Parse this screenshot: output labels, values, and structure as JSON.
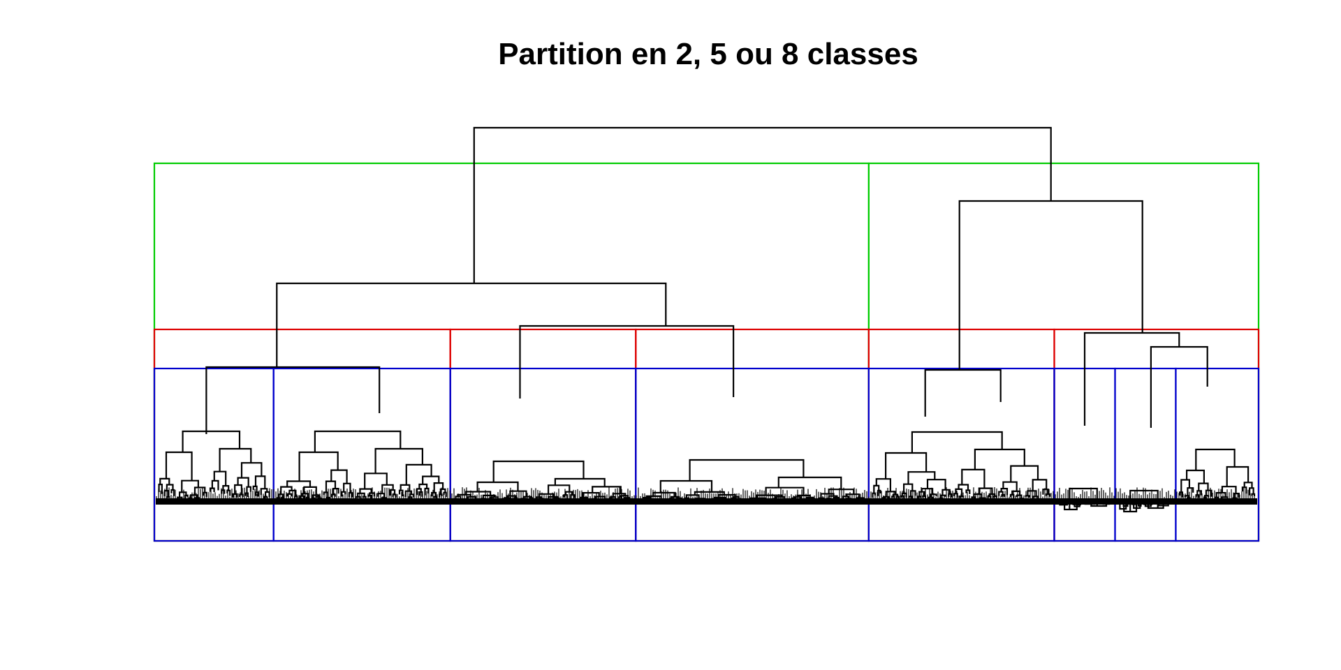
{
  "chart_data": {
    "type": "dendrogram",
    "title": "Partition en 2, 5 ou 8 classes",
    "xlabel": "",
    "ylabel": "",
    "axes": "none",
    "partitions": [
      {
        "k": 2,
        "color": "#00cc00",
        "sizes": [
          0.647,
          0.353
        ]
      },
      {
        "k": 5,
        "color": "#dd0000",
        "sizes": [
          0.268,
          0.168,
          0.211,
          0.168,
          0.185
        ]
      },
      {
        "k": 8,
        "color": "#0000cc",
        "sizes": [
          0.108,
          0.16,
          0.168,
          0.211,
          0.168,
          0.055,
          0.055,
          0.075
        ]
      }
    ],
    "root_height": 1.0,
    "merges": [
      {
        "children": [
          "A",
          "B"
        ],
        "height": 1.0
      },
      {
        "children": [
          "A1",
          "A2"
        ],
        "height": 0.574
      },
      {
        "children": [
          "B1",
          "B2"
        ],
        "height": 0.818
      },
      {
        "children": [
          "C1",
          "C2"
        ],
        "height": 0.357
      },
      {
        "children": [
          "C3",
          "C4"
        ],
        "height": 0.442
      },
      {
        "children": [
          "C7",
          "C8"
        ],
        "height": 0.345
      },
      {
        "children": [
          "C6",
          "C7C8"
        ],
        "height": 0.425
      },
      {
        "children": [
          "C5",
          "C6C7C8"
        ],
        "height": 0.355
      }
    ]
  }
}
